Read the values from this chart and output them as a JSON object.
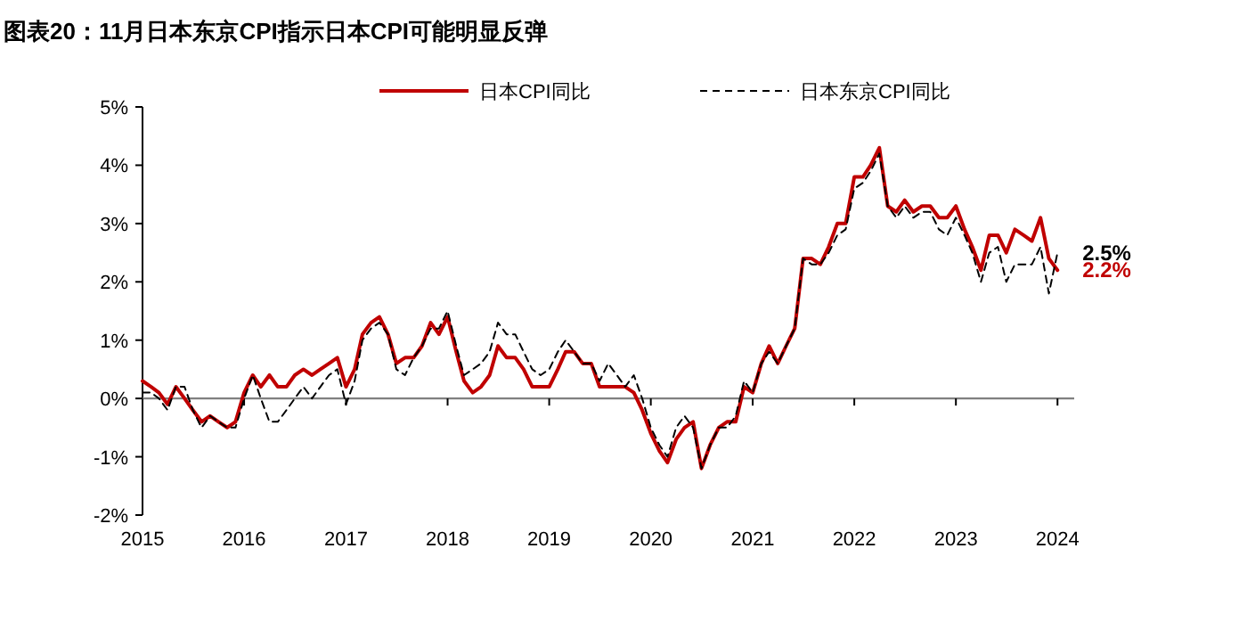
{
  "chart_data": {
    "type": "line",
    "title": "图表20：11月日本东京CPI指示日本CPI可能明显反弹",
    "x": [
      "2015-01",
      "2015-02",
      "2015-03",
      "2015-04",
      "2015-05",
      "2015-06",
      "2015-07",
      "2015-08",
      "2015-09",
      "2015-10",
      "2015-11",
      "2015-12",
      "2016-01",
      "2016-02",
      "2016-03",
      "2016-04",
      "2016-05",
      "2016-06",
      "2016-07",
      "2016-08",
      "2016-09",
      "2016-10",
      "2016-11",
      "2016-12",
      "2017-01",
      "2017-02",
      "2017-03",
      "2017-04",
      "2017-05",
      "2017-06",
      "2017-07",
      "2017-08",
      "2017-09",
      "2017-10",
      "2017-11",
      "2017-12",
      "2018-01",
      "2018-02",
      "2018-03",
      "2018-04",
      "2018-05",
      "2018-06",
      "2018-07",
      "2018-08",
      "2018-09",
      "2018-10",
      "2018-11",
      "2018-12",
      "2019-01",
      "2019-02",
      "2019-03",
      "2019-04",
      "2019-05",
      "2019-06",
      "2019-07",
      "2019-08",
      "2019-09",
      "2019-10",
      "2019-11",
      "2019-12",
      "2020-01",
      "2020-02",
      "2020-03",
      "2020-04",
      "2020-05",
      "2020-06",
      "2020-07",
      "2020-08",
      "2020-09",
      "2020-10",
      "2020-11",
      "2020-12",
      "2021-01",
      "2021-02",
      "2021-03",
      "2021-04",
      "2021-05",
      "2021-06",
      "2021-07",
      "2021-08",
      "2021-09",
      "2021-10",
      "2021-11",
      "2021-12",
      "2022-01",
      "2022-02",
      "2022-03",
      "2022-04",
      "2022-05",
      "2022-06",
      "2022-07",
      "2022-08",
      "2022-09",
      "2022-10",
      "2022-11",
      "2022-12",
      "2023-01",
      "2023-02",
      "2023-03",
      "2023-04",
      "2023-05",
      "2023-06",
      "2023-07",
      "2023-08",
      "2023-09",
      "2023-10",
      "2023-11",
      "2023-12",
      "2024-01"
    ],
    "series": [
      {
        "name": "日本CPI同比",
        "color": "#c00000",
        "line_style": "solid",
        "values": [
          0.3,
          0.2,
          0.1,
          -0.1,
          0.2,
          0.0,
          -0.2,
          -0.4,
          -0.3,
          -0.4,
          -0.5,
          -0.4,
          0.1,
          0.4,
          0.2,
          0.4,
          0.2,
          0.2,
          0.4,
          0.5,
          0.4,
          0.5,
          0.6,
          0.7,
          0.2,
          0.5,
          1.1,
          1.3,
          1.4,
          1.1,
          0.6,
          0.7,
          0.7,
          0.9,
          1.3,
          1.1,
          1.4,
          0.8,
          0.3,
          0.1,
          0.2,
          0.4,
          0.9,
          0.7,
          0.7,
          0.5,
          0.2,
          0.2,
          0.2,
          0.5,
          0.8,
          0.8,
          0.6,
          0.6,
          0.2,
          0.2,
          0.2,
          0.2,
          0.1,
          -0.2,
          -0.6,
          -0.9,
          -1.1,
          -0.7,
          -0.5,
          -0.4,
          -1.2,
          -0.8,
          -0.5,
          -0.4,
          -0.4,
          0.2,
          0.1,
          0.6,
          0.9,
          0.6,
          0.9,
          1.2,
          2.4,
          2.4,
          2.3,
          2.6,
          3.0,
          3.0,
          3.8,
          3.8,
          4.0,
          4.3,
          3.3,
          3.2,
          3.4,
          3.2,
          3.3,
          3.3,
          3.1,
          3.1,
          3.3,
          2.9,
          2.6,
          2.2,
          2.8,
          2.8,
          2.5,
          2.9,
          2.8,
          2.7,
          3.1,
          2.4,
          2.2
        ]
      },
      {
        "name": "日本东京CPI同比",
        "color": "#000000",
        "line_style": "dashed",
        "values": [
          0.1,
          0.1,
          0.0,
          -0.2,
          0.2,
          0.2,
          -0.2,
          -0.5,
          -0.3,
          -0.4,
          -0.5,
          -0.5,
          0.0,
          0.4,
          0.0,
          -0.4,
          -0.4,
          -0.2,
          0.0,
          0.2,
          0.0,
          0.2,
          0.4,
          0.5,
          -0.1,
          0.3,
          1.0,
          1.2,
          1.3,
          1.1,
          0.5,
          0.4,
          0.7,
          0.9,
          1.2,
          1.2,
          1.5,
          0.9,
          0.4,
          0.5,
          0.6,
          0.8,
          1.3,
          1.1,
          1.1,
          0.8,
          0.5,
          0.4,
          0.5,
          0.8,
          1.0,
          0.8,
          0.6,
          0.6,
          0.3,
          0.6,
          0.4,
          0.2,
          0.4,
          0.0,
          -0.5,
          -0.8,
          -1.0,
          -0.5,
          -0.3,
          -0.5,
          -1.2,
          -0.8,
          -0.5,
          -0.5,
          -0.3,
          0.3,
          0.1,
          0.6,
          0.8,
          0.6,
          0.9,
          1.2,
          2.4,
          2.3,
          2.3,
          2.5,
          2.8,
          2.9,
          3.6,
          3.7,
          3.9,
          4.2,
          3.3,
          3.1,
          3.3,
          3.1,
          3.2,
          3.2,
          2.9,
          2.8,
          3.1,
          2.8,
          2.5,
          2.0,
          2.5,
          2.6,
          2.0,
          2.3,
          2.3,
          2.3,
          2.6,
          1.8,
          2.5
        ]
      }
    ],
    "annotations": [
      {
        "text": "2.5%",
        "x": "2024-01",
        "y": 2.5
      },
      {
        "text": "2.2%",
        "x": "2024-01",
        "y": 2.2
      }
    ],
    "xlim": [
      "2015-01",
      "2024-03"
    ],
    "xticks": [
      {
        "value": "2015-01",
        "label": "2015"
      },
      {
        "value": "2016-01",
        "label": "2016"
      },
      {
        "value": "2017-01",
        "label": "2017"
      },
      {
        "value": "2018-01",
        "label": "2018"
      },
      {
        "value": "2019-01",
        "label": "2019"
      },
      {
        "value": "2020-01",
        "label": "2020"
      },
      {
        "value": "2021-01",
        "label": "2021"
      },
      {
        "value": "2022-01",
        "label": "2022"
      },
      {
        "value": "2023-01",
        "label": "2023"
      },
      {
        "value": "2024-01",
        "label": "2024"
      }
    ],
    "ylim": [
      -2,
      5
    ],
    "yticks": [
      {
        "value": -2,
        "label": "-2%"
      },
      {
        "value": -1,
        "label": "-1%"
      },
      {
        "value": 0,
        "label": "0%"
      },
      {
        "value": 1,
        "label": "1%"
      },
      {
        "value": 2,
        "label": "2%"
      },
      {
        "value": 3,
        "label": "3%"
      },
      {
        "value": 4,
        "label": "4%"
      },
      {
        "value": 5,
        "label": "5%"
      }
    ],
    "ref_lines": [
      {
        "axis": "y",
        "value": 0,
        "color": "#808080"
      }
    ],
    "legend": "top",
    "grid": false
  }
}
